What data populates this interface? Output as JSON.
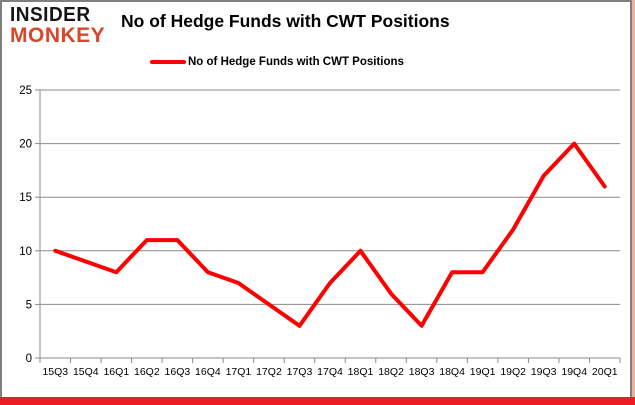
{
  "header": {
    "logo_line1": "INSIDER",
    "logo_line2": "MONKEY",
    "title": "No of Hedge Funds with CWT Positions"
  },
  "legend": {
    "label": "No of Hedge Funds with CWT Positions"
  },
  "colors": {
    "series_line": "#ff0000",
    "grid": "#8a8a8a",
    "axis": "#8a8a8a",
    "tick_text": "#000000",
    "logo_accent": "#d8472b",
    "logo_black": "#151515",
    "border_gray": "#7f7f7f",
    "bottom_bar_red": "#ed1c24",
    "right_accent_pink": "#f2aca4"
  },
  "chart_data": {
    "type": "line",
    "title": "No of Hedge Funds with CWT Positions",
    "categories": [
      "15Q3",
      "15Q4",
      "16Q1",
      "16Q2",
      "16Q3",
      "16Q4",
      "17Q1",
      "17Q2",
      "17Q3",
      "17Q4",
      "18Q1",
      "18Q2",
      "18Q3",
      "18Q4",
      "19Q1",
      "19Q2",
      "19Q3",
      "19Q4",
      "20Q1"
    ],
    "series": [
      {
        "name": "No of Hedge Funds with CWT Positions",
        "color": "#ff0000",
        "values": [
          10,
          9,
          8,
          11,
          11,
          8,
          7,
          5,
          3,
          7,
          10,
          6,
          3,
          8,
          8,
          12,
          17,
          20,
          16
        ]
      }
    ],
    "ylim": [
      0,
      25
    ],
    "ytick_step": 5,
    "yticks": [
      0,
      5,
      10,
      15,
      20,
      25
    ],
    "grid": "horizontal",
    "legend_position": "top"
  }
}
